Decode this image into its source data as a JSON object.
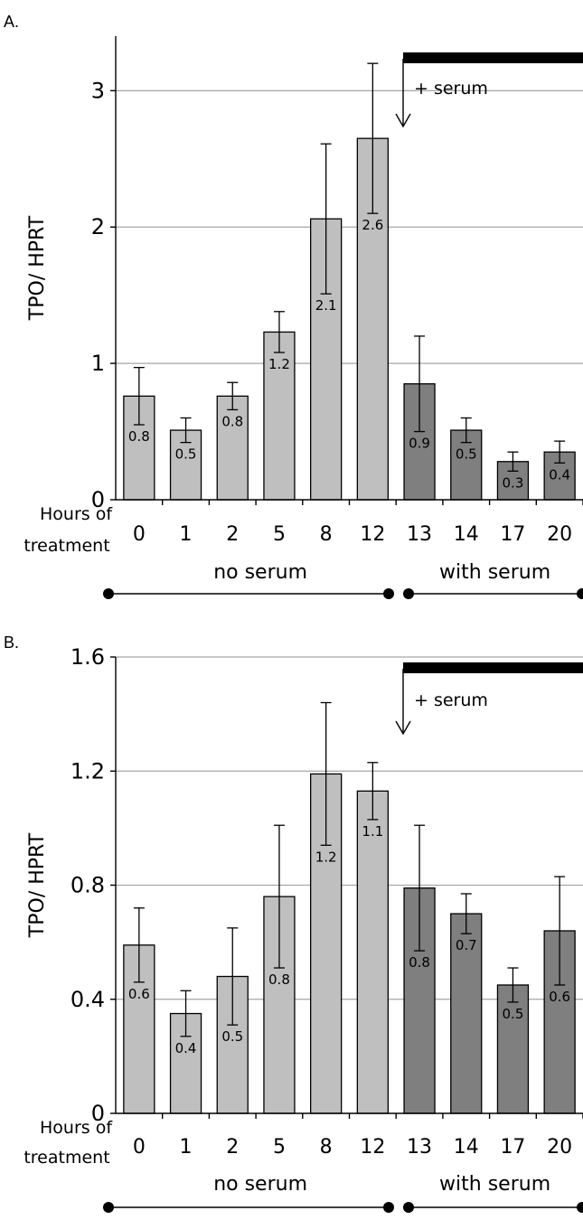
{
  "chart_data": [
    {
      "panel_label": "A.",
      "type": "bar",
      "ylabel": "TPO/ HPRT",
      "xlabel_lines": [
        "Hours of",
        "treatment"
      ],
      "ylim": [
        0,
        3.4
      ],
      "yticks": [
        "0",
        "1",
        "2",
        "3"
      ],
      "ytick_values": [
        0,
        1,
        2,
        3
      ],
      "grid": true,
      "categories": [
        "0",
        "1",
        "2",
        "5",
        "8",
        "12",
        "13",
        "14",
        "17",
        "20"
      ],
      "values": [
        0.76,
        0.51,
        0.76,
        1.23,
        2.06,
        2.65,
        0.85,
        0.51,
        0.28,
        0.35
      ],
      "error": [
        0.21,
        0.09,
        0.1,
        0.15,
        0.55,
        0.55,
        0.35,
        0.09,
        0.07,
        0.08
      ],
      "value_labels": [
        "0.8",
        "0.5",
        "0.8",
        "1.2",
        "2.1",
        "2.6",
        "0.9",
        "0.5",
        "0.3",
        "0.4"
      ],
      "groups": [
        {
          "label": "no serum",
          "count": 6,
          "color": "#bfbfbf"
        },
        {
          "label": "with serum",
          "count": 4,
          "color": "#7f7f7f"
        }
      ],
      "annotation": "+ serum"
    },
    {
      "panel_label": "B.",
      "type": "bar",
      "ylabel": "TPO/ HPRT",
      "xlabel_lines": [
        "Hours of",
        "treatment"
      ],
      "ylim": [
        0,
        1.6
      ],
      "yticks": [
        "0",
        "0.4",
        "0.8",
        "1.2",
        "1.6"
      ],
      "ytick_values": [
        0,
        0.4,
        0.8,
        1.2,
        1.6
      ],
      "grid": true,
      "categories": [
        "0",
        "1",
        "2",
        "5",
        "8",
        "12",
        "13",
        "14",
        "17",
        "20"
      ],
      "values": [
        0.59,
        0.35,
        0.48,
        0.76,
        1.19,
        1.13,
        0.79,
        0.7,
        0.45,
        0.64
      ],
      "error": [
        0.13,
        0.08,
        0.17,
        0.25,
        0.25,
        0.1,
        0.22,
        0.07,
        0.06,
        0.19
      ],
      "value_labels": [
        "0.6",
        "0.4",
        "0.5",
        "0.8",
        "1.2",
        "1.1",
        "0.8",
        "0.7",
        "0.5",
        "0.6"
      ],
      "groups": [
        {
          "label": "no serum",
          "count": 6,
          "color": "#bfbfbf"
        },
        {
          "label": "with serum",
          "count": 4,
          "color": "#7f7f7f"
        }
      ],
      "annotation": "+ serum"
    }
  ]
}
